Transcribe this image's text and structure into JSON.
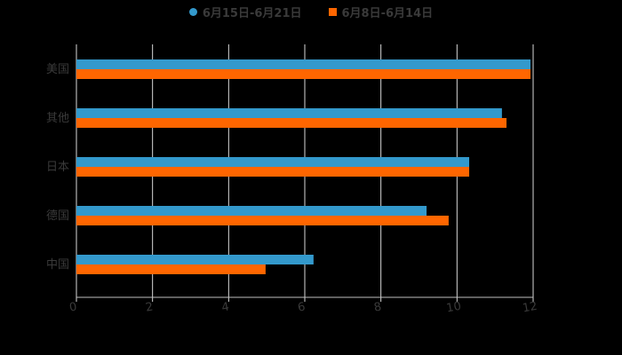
{
  "chart_data": {
    "type": "bar",
    "orientation": "horizontal",
    "title": "",
    "categories": [
      "美国",
      "其他",
      "日本",
      "德国",
      "中国"
    ],
    "series": [
      {
        "name": "6月15日-6月21日",
        "color": "#3399cc",
        "values": [
          11.93,
          11.18,
          10.32,
          9.2,
          6.23
        ]
      },
      {
        "name": "6月8日-6月14日",
        "color": "#ff6600",
        "values": [
          11.93,
          11.3,
          10.32,
          9.78,
          4.97
        ]
      }
    ],
    "xlabel": "",
    "ylabel": "",
    "xlim": [
      0,
      12
    ],
    "xticks": [
      "0",
      "2",
      "4",
      "6",
      "8",
      "10",
      "12"
    ],
    "grid": true,
    "legend_position": "top"
  },
  "legend": {
    "items": [
      {
        "label": "6月15日-6月21日",
        "color": "#3399cc",
        "shape": "circle"
      },
      {
        "label": "6月8日-6月14日",
        "color": "#ff6600",
        "shape": "square"
      }
    ]
  }
}
